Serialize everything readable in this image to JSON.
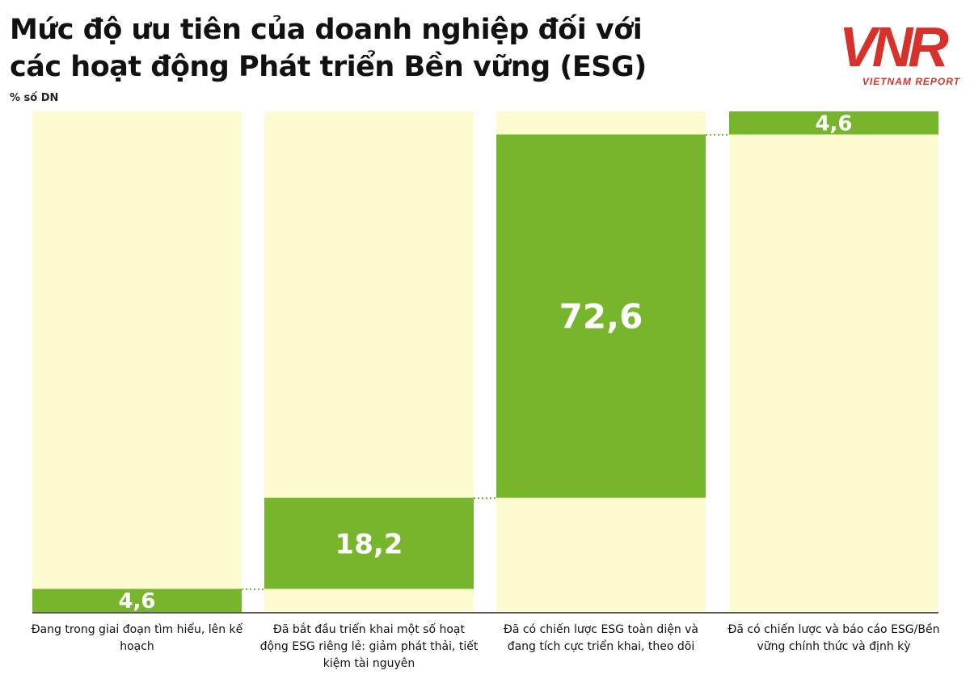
{
  "title": {
    "line1": "Mức độ ưu tiên của doanh nghiệp đối với",
    "line2": "các hoạt động Phát triển Bền vững (ESG)"
  },
  "unit_label": "% số DN",
  "logo": {
    "mark": "VNR",
    "subtitle": "VIETNAM REPORT",
    "color": "#d6312b"
  },
  "colors": {
    "bar": "#76b52c",
    "track": "#fdfcd0",
    "connector": "#76b52c",
    "value_text": "#ffffff"
  },
  "chart_data": {
    "type": "bar",
    "subtype": "waterfall",
    "title": "Mức độ ưu tiên của doanh nghiệp đối với các hoạt động Phát triển Bền vững (ESG)",
    "ylabel": "% số DN",
    "ylim": [
      0,
      100
    ],
    "grid": false,
    "categories": [
      "Đang trong giai đoạn tìm hiểu, lên kế hoạch",
      "Đã bắt đầu triển khai một số hoạt động ESG riêng lẻ: giảm phát thải, tiết kiệm tài nguyên",
      "Đã có chiến lược ESG toàn diện và đang tích cực triển khai, theo dõi",
      "Đã có chiến lược và báo cáo ESG/Bền vững chính thức và định kỳ"
    ],
    "values": [
      4.6,
      18.2,
      72.6,
      4.6
    ],
    "value_labels": [
      "4,6",
      "18,2",
      "72,6",
      "4,6"
    ]
  }
}
